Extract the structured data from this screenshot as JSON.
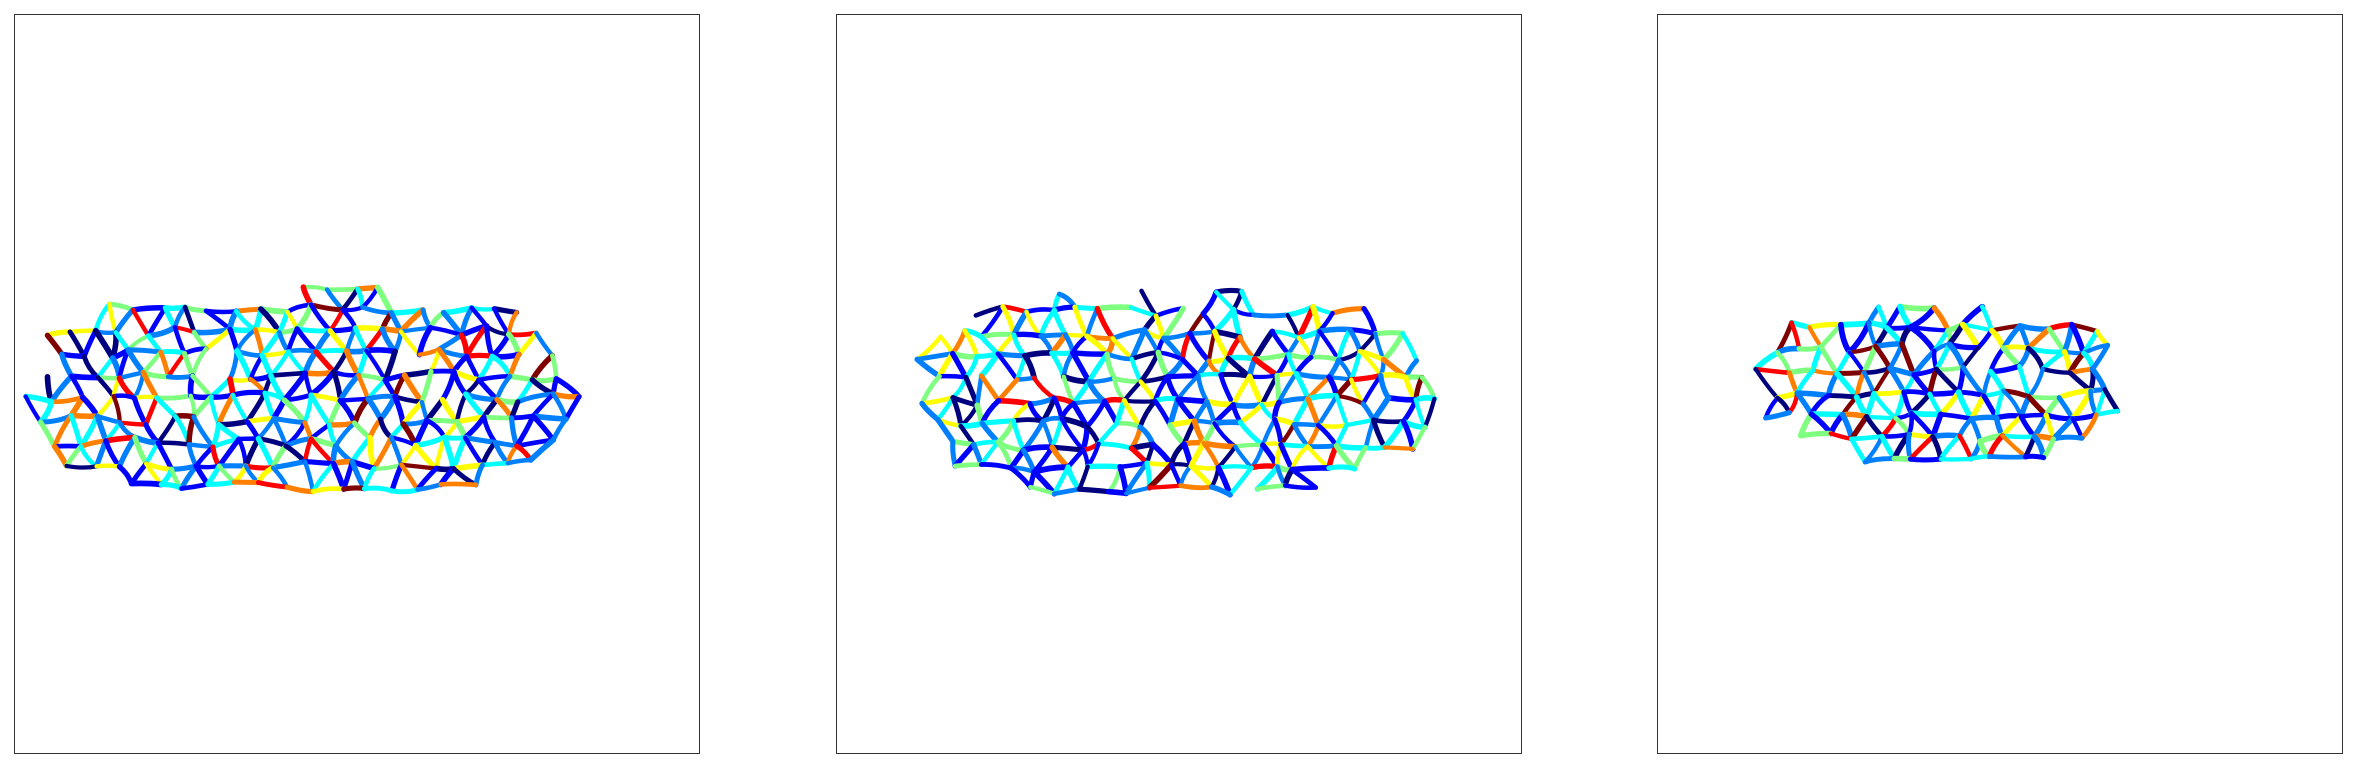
{
  "figure": {
    "panel_count": 3,
    "background": "#ffffff",
    "frame_color": "#333333",
    "colormap": "jet",
    "colormap_stops": [
      "#00007f",
      "#0000ff",
      "#007fff",
      "#00ffff",
      "#7fff7f",
      "#ffff00",
      "#ff7f00",
      "#ff0000",
      "#7f0000"
    ],
    "panels": [
      {
        "id": "panel-1",
        "tissue": "cell-junction-network",
        "extent": "wide"
      },
      {
        "id": "panel-2",
        "tissue": "cell-junction-network",
        "extent": "wide"
      },
      {
        "id": "panel-3",
        "tissue": "cell-junction-network",
        "extent": "compact"
      }
    ]
  }
}
